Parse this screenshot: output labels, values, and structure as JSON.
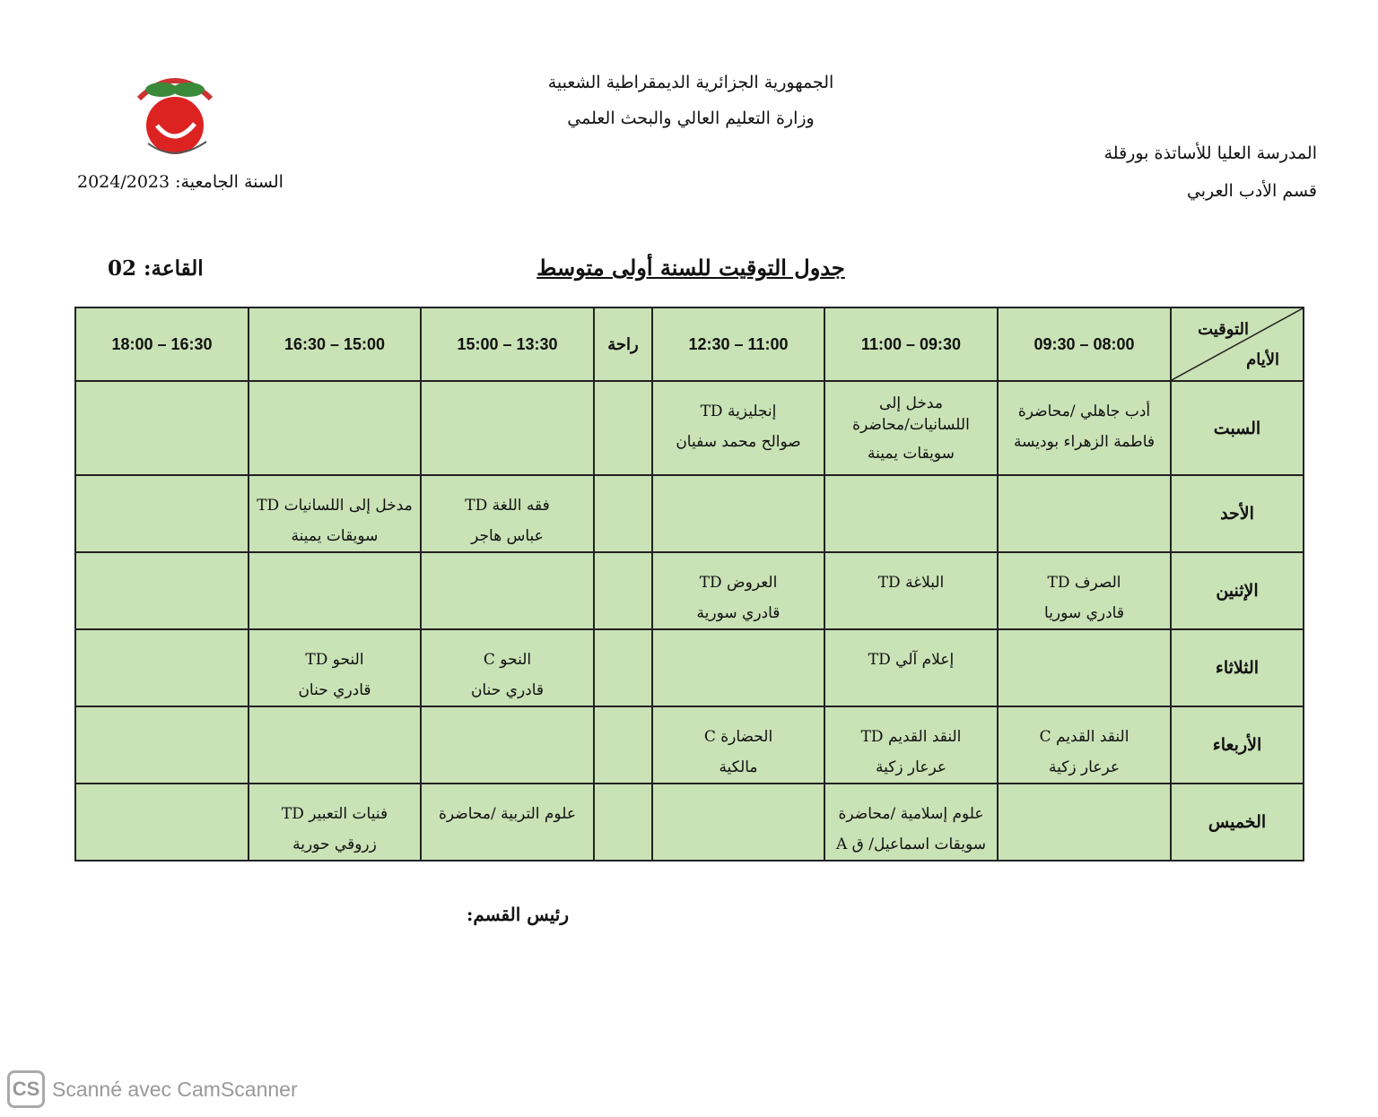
{
  "header": {
    "republic": "الجمهورية الجزائرية الديمقراطية الشعبية",
    "ministry": "وزارة التعليم العالي والبحث العلمي",
    "school": "المدرسة العليا للأساتذة بورقلة",
    "department": "قسم الأدب العربي",
    "academic_year": "السنة الجامعية: 2024/2023"
  },
  "title": "جدول التوقيت للسنة أولى متوسط",
  "room": "القاعة: 02",
  "table": {
    "corner_top": "التوقيت",
    "corner_bottom": "الأيام",
    "columns": [
      "09:30 – 08:00",
      "11:00 – 09:30",
      "12:30 – 11:00",
      "راحة",
      "15:00 – 13:30",
      "16:30 – 15:00",
      "18:00 – 16:30"
    ],
    "rows": [
      {
        "day": "السبت",
        "cells": [
          [
            "أدب جاهلي /محاضرة",
            "فاطمة الزهراء بوديسة"
          ],
          [
            "مدخل إلى",
            "اللسانيات/محاضرة",
            "سويقات يمينة"
          ],
          [
            "إنجليزية TD",
            "صوالح محمد سفيان"
          ],
          [],
          [],
          [],
          []
        ]
      },
      {
        "day": "الأحد",
        "cells": [
          [],
          [],
          [],
          [],
          [
            "فقه اللغة TD",
            "عباس هاجر"
          ],
          [
            "مدخل إلى اللسانيات TD",
            "سويقات يمينة"
          ],
          []
        ]
      },
      {
        "day": "الإثنين",
        "cells": [
          [
            "الصرف TD",
            "قادري سوريا"
          ],
          [
            "البلاغة TD"
          ],
          [
            "العروض TD",
            "قادري سورية"
          ],
          [],
          [],
          [],
          []
        ]
      },
      {
        "day": "الثلاثاء",
        "cells": [
          [],
          [
            "إعلام آلي TD"
          ],
          [],
          [],
          [
            "النحو C",
            "قادري حنان"
          ],
          [
            "النحو TD",
            "قادري حنان"
          ],
          []
        ]
      },
      {
        "day": "الأربعاء",
        "cells": [
          [
            "النقد القديم C",
            "عرعار زكية"
          ],
          [
            "النقد القديم TD",
            "عرعار زكية"
          ],
          [
            "الحضارة C",
            "مالكية"
          ],
          [],
          [],
          [],
          []
        ]
      },
      {
        "day": "الخميس",
        "cells": [
          [],
          [
            "علوم إسلامية /محاضرة",
            "سويقات اسماعيل/ ق A"
          ],
          [],
          [],
          [
            "علوم التربية /محاضرة"
          ],
          [
            "فنيات التعبير TD",
            "زروقي حورية"
          ],
          []
        ]
      }
    ]
  },
  "chief": "رئيس القسم:",
  "watermark": "Scanné avec CamScanner",
  "watermark_logo": "CS",
  "colors": {
    "cell_bg": "#c9e2b6",
    "border": "#222222"
  }
}
